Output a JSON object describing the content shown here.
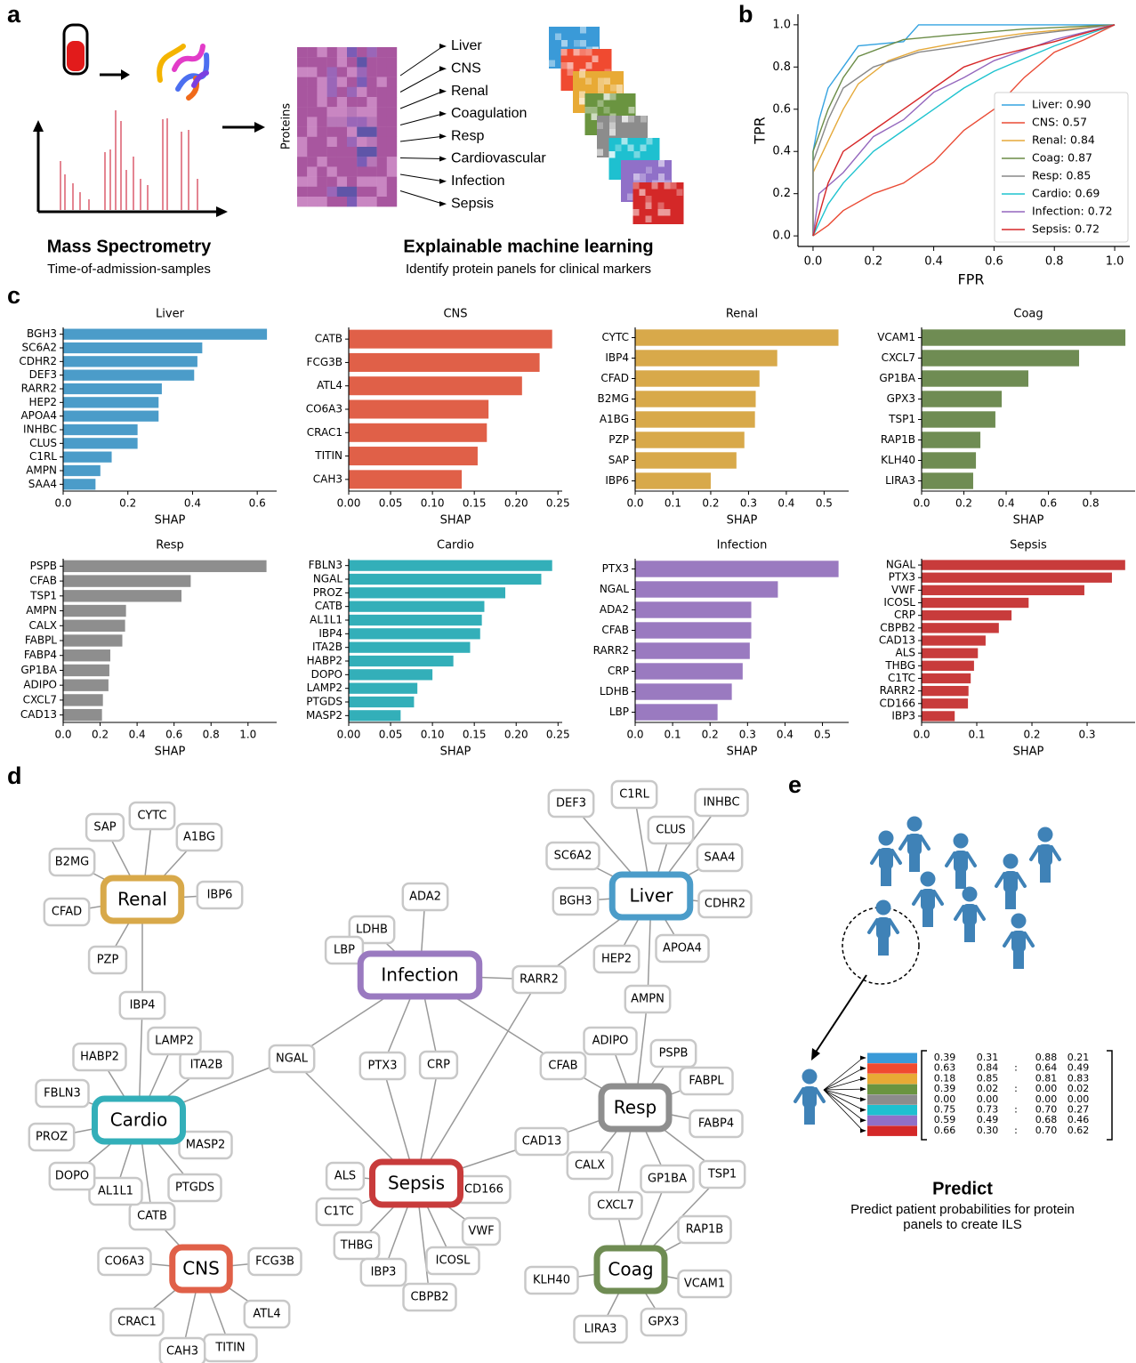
{
  "panel_labels": [
    "a",
    "b",
    "c",
    "d",
    "e"
  ],
  "panel_a": {
    "heatmap_label": "Proteins",
    "markers": [
      "Liver",
      "CNS",
      "Renal",
      "Coagulation",
      "Resp",
      "Cardiovascular",
      "Infection",
      "Sepsis"
    ],
    "left_title": "Mass Spectrometry",
    "left_subtitle": "Time-of-admission-samples",
    "right_title": "Explainable machine learning",
    "right_subtitle": "Identify protein panels for clinical markers"
  },
  "chart_data": [
    {
      "type": "line",
      "xlabel": "FPR",
      "ylabel": "TPR",
      "xlim": [
        -0.05,
        1.05
      ],
      "ylim": [
        -0.05,
        1.05
      ],
      "xticks": [
        {
          "value": 0,
          "label": "0.0"
        },
        0.2,
        0.4,
        0.6,
        0.8,
        {
          "value": 1,
          "label": "1.0"
        }
      ],
      "yticks": [
        {
          "value": 0,
          "label": "0.0"
        },
        0.2,
        0.4,
        0.6,
        0.8,
        {
          "value": 1,
          "label": "1.0"
        }
      ],
      "legend": "lower right",
      "series": [
        {
          "name": "Liver: 0.90",
          "color": "#35a3e0",
          "x": [
            0,
            0,
            0.02,
            0.05,
            0.1,
            0.15,
            0.3,
            0.35,
            0.6,
            1
          ],
          "values": [
            0,
            0.4,
            0.55,
            0.7,
            0.8,
            0.9,
            0.92,
            1,
            1,
            1
          ]
        },
        {
          "name": "CNS: 0.57",
          "color": "#ea4b35",
          "x": [
            0,
            0.05,
            0.1,
            0.2,
            0.3,
            0.4,
            0.5,
            0.6,
            0.7,
            0.8,
            0.9,
            1
          ],
          "values": [
            0,
            0.05,
            0.12,
            0.2,
            0.25,
            0.35,
            0.5,
            0.6,
            0.75,
            0.87,
            0.93,
            1
          ]
        },
        {
          "name": "Renal: 0.84",
          "color": "#e5a93a",
          "x": [
            0,
            0,
            0.05,
            0.1,
            0.15,
            0.25,
            0.35,
            0.5,
            0.7,
            1
          ],
          "values": [
            0,
            0.3,
            0.45,
            0.6,
            0.72,
            0.83,
            0.88,
            0.92,
            0.96,
            1
          ]
        },
        {
          "name": "Coag: 0.87",
          "color": "#6b8c47",
          "x": [
            0,
            0,
            0.05,
            0.1,
            0.15,
            0.3,
            0.45,
            0.7,
            1
          ],
          "values": [
            0,
            0.4,
            0.6,
            0.75,
            0.85,
            0.93,
            0.95,
            0.98,
            1
          ]
        },
        {
          "name": "Resp: 0.85",
          "color": "#888888",
          "x": [
            0,
            0,
            0.05,
            0.1,
            0.2,
            0.35,
            0.5,
            0.7,
            1
          ],
          "values": [
            0,
            0.35,
            0.55,
            0.7,
            0.8,
            0.87,
            0.9,
            0.95,
            1
          ]
        },
        {
          "name": "Cardio: 0.69",
          "color": "#1fc3cf",
          "x": [
            0,
            0.05,
            0.1,
            0.2,
            0.3,
            0.4,
            0.5,
            0.6,
            0.8,
            1
          ],
          "values": [
            0,
            0.15,
            0.25,
            0.4,
            0.5,
            0.6,
            0.7,
            0.78,
            0.9,
            1
          ]
        },
        {
          "name": "Infection: 0.72",
          "color": "#9467bd",
          "x": [
            0,
            0.02,
            0.1,
            0.2,
            0.3,
            0.4,
            0.5,
            0.6,
            0.8,
            1
          ],
          "values": [
            0,
            0.2,
            0.3,
            0.47,
            0.55,
            0.68,
            0.75,
            0.83,
            0.93,
            1
          ]
        },
        {
          "name": "Sepsis: 0.72",
          "color": "#d62728",
          "x": [
            0,
            0.05,
            0.1,
            0.2,
            0.3,
            0.4,
            0.5,
            0.6,
            0.8,
            1
          ],
          "values": [
            0,
            0.25,
            0.4,
            0.5,
            0.6,
            0.7,
            0.8,
            0.85,
            0.92,
            1
          ]
        }
      ]
    },
    {
      "type": "barh",
      "title": "Liver",
      "xlabel": "SHAP",
      "color": "#4b9cc9",
      "xlim": [
        0,
        0.66
      ],
      "xticks": [
        {
          "value": 0,
          "label": "0.0"
        },
        0.2,
        0.4,
        0.6
      ],
      "categories": [
        "BGH3",
        "SC6A2",
        "CDHR2",
        "DEF3",
        "RARR2",
        "HEP2",
        "APOA4",
        "INHBC",
        "CLUS",
        "C1RL",
        "AMPN",
        "SAA4"
      ],
      "values": [
        0.63,
        0.43,
        0.415,
        0.405,
        0.305,
        0.295,
        0.295,
        0.23,
        0.23,
        0.15,
        0.115,
        0.1
      ]
    },
    {
      "type": "barh",
      "title": "CNS",
      "xlabel": "SHAP",
      "color": "#e06048",
      "xlim": [
        0,
        0.255
      ],
      "xticks": [
        {
          "value": 0,
          "label": "0.00"
        },
        {
          "value": 0.05,
          "label": "0.05"
        },
        {
          "value": 0.1,
          "label": "0.10"
        },
        {
          "value": 0.15,
          "label": "0.15"
        },
        {
          "value": 0.2,
          "label": "0.20"
        },
        {
          "value": 0.25,
          "label": "0.25"
        }
      ],
      "categories": [
        "CATB",
        "FCG3B",
        "ATL4",
        "CO6A3",
        "CRAC1",
        "TITIN",
        "CAH3"
      ],
      "values": [
        0.243,
        0.228,
        0.207,
        0.167,
        0.165,
        0.154,
        0.135
      ]
    },
    {
      "type": "barh",
      "title": "Renal",
      "xlabel": "SHAP",
      "color": "#d8a94a",
      "xlim": [
        0,
        0.565
      ],
      "xticks": [
        {
          "value": 0,
          "label": "0.0"
        },
        0.1,
        0.2,
        0.3,
        0.4,
        0.5
      ],
      "categories": [
        "CYTC",
        "IBP4",
        "CFAD",
        "B2MG",
        "A1BG",
        "PZP",
        "SAP",
        "IBP6"
      ],
      "values": [
        0.538,
        0.376,
        0.329,
        0.319,
        0.317,
        0.289,
        0.268,
        0.2
      ]
    },
    {
      "type": "barh",
      "title": "Coag",
      "xlabel": "SHAP",
      "color": "#6f8c53",
      "xlim": [
        0,
        1.01
      ],
      "xticks": [
        {
          "value": 0,
          "label": "0.0"
        },
        0.2,
        0.4,
        0.6,
        0.8
      ],
      "categories": [
        "VCAM1",
        "CXCL7",
        "GP1BA",
        "GPX3",
        "TSP1",
        "RAP1B",
        "KLH40",
        "LIRA3"
      ],
      "values": [
        0.964,
        0.745,
        0.505,
        0.379,
        0.349,
        0.278,
        0.257,
        0.244
      ]
    },
    {
      "type": "barh",
      "title": "Resp",
      "xlabel": "SHAP",
      "color": "#8e8e8e",
      "xlim": [
        0,
        1.155
      ],
      "xticks": [
        {
          "value": 0,
          "label": "0.0"
        },
        0.2,
        0.4,
        0.6,
        0.8,
        {
          "value": 1,
          "label": "1.0"
        }
      ],
      "categories": [
        "PSPB",
        "CFAB",
        "TSP1",
        "AMPN",
        "CALX",
        "FABPL",
        "FABP4",
        "GP1BA",
        "ADIPO",
        "CXCL7",
        "CAD13"
      ],
      "values": [
        1.1,
        0.69,
        0.64,
        0.34,
        0.335,
        0.32,
        0.255,
        0.25,
        0.245,
        0.215,
        0.21
      ]
    },
    {
      "type": "barh",
      "title": "Cardio",
      "xlabel": "SHAP",
      "color": "#33afb9",
      "xlim": [
        0,
        0.255
      ],
      "xticks": [
        {
          "value": 0,
          "label": "0.00"
        },
        {
          "value": 0.05,
          "label": "0.05"
        },
        {
          "value": 0.1,
          "label": "0.10"
        },
        {
          "value": 0.15,
          "label": "0.15"
        },
        {
          "value": 0.2,
          "label": "0.20"
        },
        {
          "value": 0.25,
          "label": "0.25"
        }
      ],
      "categories": [
        "FBLN3",
        "NGAL",
        "PROZ",
        "CATB",
        "AL1L1",
        "IBP4",
        "ITA2B",
        "HABP2",
        "DOPO",
        "LAMP2",
        "PTGDS",
        "MASP2"
      ],
      "values": [
        0.243,
        0.23,
        0.187,
        0.162,
        0.159,
        0.157,
        0.145,
        0.125,
        0.1,
        0.082,
        0.078,
        0.062
      ]
    },
    {
      "type": "barh",
      "title": "Infection",
      "xlabel": "SHAP",
      "color": "#9a7ac0",
      "xlim": [
        0,
        0.57
      ],
      "xticks": [
        {
          "value": 0,
          "label": "0.0"
        },
        0.1,
        0.2,
        0.3,
        0.4,
        0.5
      ],
      "categories": [
        "PTX3",
        "NGAL",
        "ADA2",
        "CFAB",
        "RARR2",
        "CRP",
        "LDHB",
        "LBP"
      ],
      "values": [
        0.543,
        0.381,
        0.31,
        0.31,
        0.306,
        0.287,
        0.258,
        0.22
      ]
    },
    {
      "type": "barh",
      "title": "Sepsis",
      "xlabel": "SHAP",
      "color": "#c83b3b",
      "xlim": [
        0,
        0.387
      ],
      "xticks": [
        {
          "value": 0,
          "label": "0.0"
        },
        0.1,
        0.2,
        0.3
      ],
      "categories": [
        "NGAL",
        "PTX3",
        "VWF",
        "ICOSL",
        "CRP",
        "CBPB2",
        "CAD13",
        "ALS",
        "THBG",
        "C1TC",
        "RARR2",
        "CD166",
        "IBP3"
      ],
      "values": [
        0.369,
        0.345,
        0.295,
        0.194,
        0.163,
        0.14,
        0.116,
        0.102,
        0.095,
        0.089,
        0.085,
        0.084,
        0.06
      ]
    }
  ],
  "panel_e": {
    "title": "Predict",
    "subtitle_lines": [
      "Predict patient probabilities for protein",
      "panels to create ILS"
    ],
    "matrix": {
      "ellipsis": ":",
      "rows": [
        [
          "0.39",
          "0.31",
          "0.88",
          "0.21"
        ],
        [
          "0.63",
          "0.84",
          "0.64",
          "0.49"
        ],
        [
          "0.18",
          "0.85",
          "0.81",
          "0.83"
        ],
        [
          "0.39",
          "0.02",
          "0.00",
          "0.02"
        ],
        [
          "0.00",
          "0.00",
          "0.00",
          "0.00"
        ],
        [
          "0.75",
          "0.73",
          "0.70",
          "0.27"
        ],
        [
          "0.59",
          "0.49",
          "0.68",
          "0.46"
        ],
        [
          "0.66",
          "0.30",
          "0.70",
          "0.62"
        ]
      ]
    }
  }
}
